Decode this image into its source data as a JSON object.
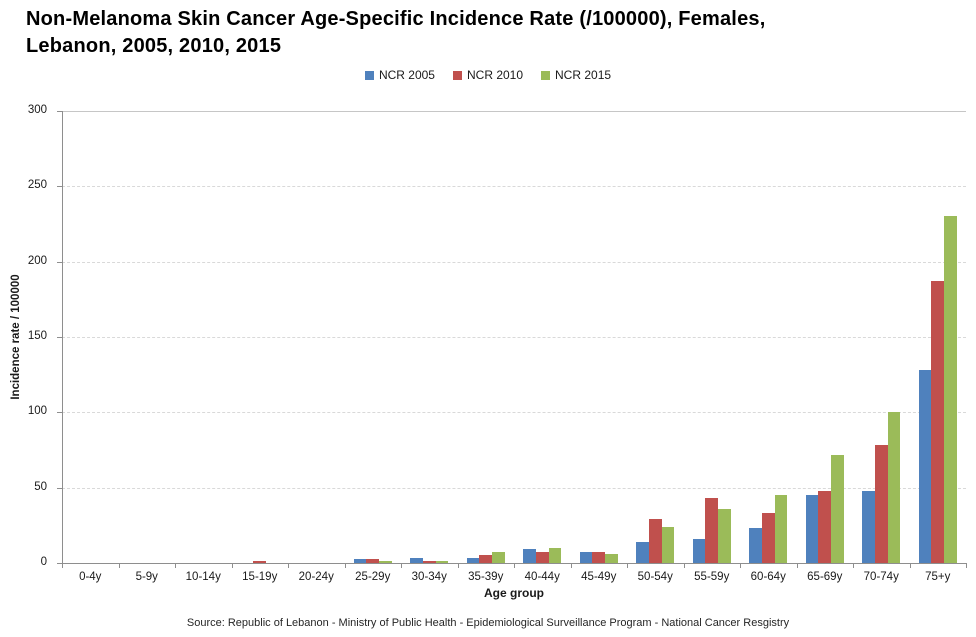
{
  "title": {
    "line1": "Non-Melanoma Skin Cancer Age-Specific Incidence Rate (/100000), Females,",
    "line2": "Lebanon, 2005, 2010, 2015"
  },
  "source_note": "Source: Republic of Lebanon - Ministry of Public Health - Epidemiological Surveillance Program - National Cancer Resgistry",
  "colors": {
    "axis": "#8e8e8e",
    "gridline": "#d9d9d9",
    "series_blue": "#4F81BD",
    "series_red": "#C0504D",
    "series_green": "#9BBB59"
  },
  "chart_data": {
    "type": "bar",
    "title": "Non-Melanoma Skin Cancer Age-Specific Incidence Rate (/100000), Females, Lebanon, 2005, 2010, 2015",
    "xlabel": "Age group",
    "ylabel": "Incidence rate / 100000",
    "ylim": [
      0,
      300
    ],
    "yticks": [
      0,
      50,
      100,
      150,
      200,
      250,
      300
    ],
    "grid": true,
    "legend_position": "top-center",
    "categories": [
      "0-4y",
      "5-9y",
      "10-14y",
      "15-19y",
      "20-24y",
      "25-29y",
      "30-34y",
      "35-39y",
      "40-44y",
      "45-49y",
      "50-54y",
      "55-59y",
      "60-64y",
      "65-69y",
      "70-74y",
      "75+y"
    ],
    "series": [
      {
        "name": "NCR 2005",
        "color": "#4F81BD",
        "values": [
          0,
          0,
          0,
          0,
          0,
          2.5,
          3,
          3,
          9,
          7,
          14,
          16,
          23,
          45,
          48,
          128
        ]
      },
      {
        "name": "NCR 2010",
        "color": "#C0504D",
        "values": [
          0,
          0,
          0,
          1,
          0,
          2.5,
          1.5,
          5.5,
          7,
          7,
          29,
          43,
          33,
          48,
          78,
          187
        ]
      },
      {
        "name": "NCR 2015",
        "color": "#9BBB59",
        "values": [
          0,
          0,
          0,
          0,
          0,
          1.5,
          1.5,
          7.5,
          10,
          6,
          24,
          36,
          45,
          72,
          100,
          230
        ]
      }
    ]
  }
}
